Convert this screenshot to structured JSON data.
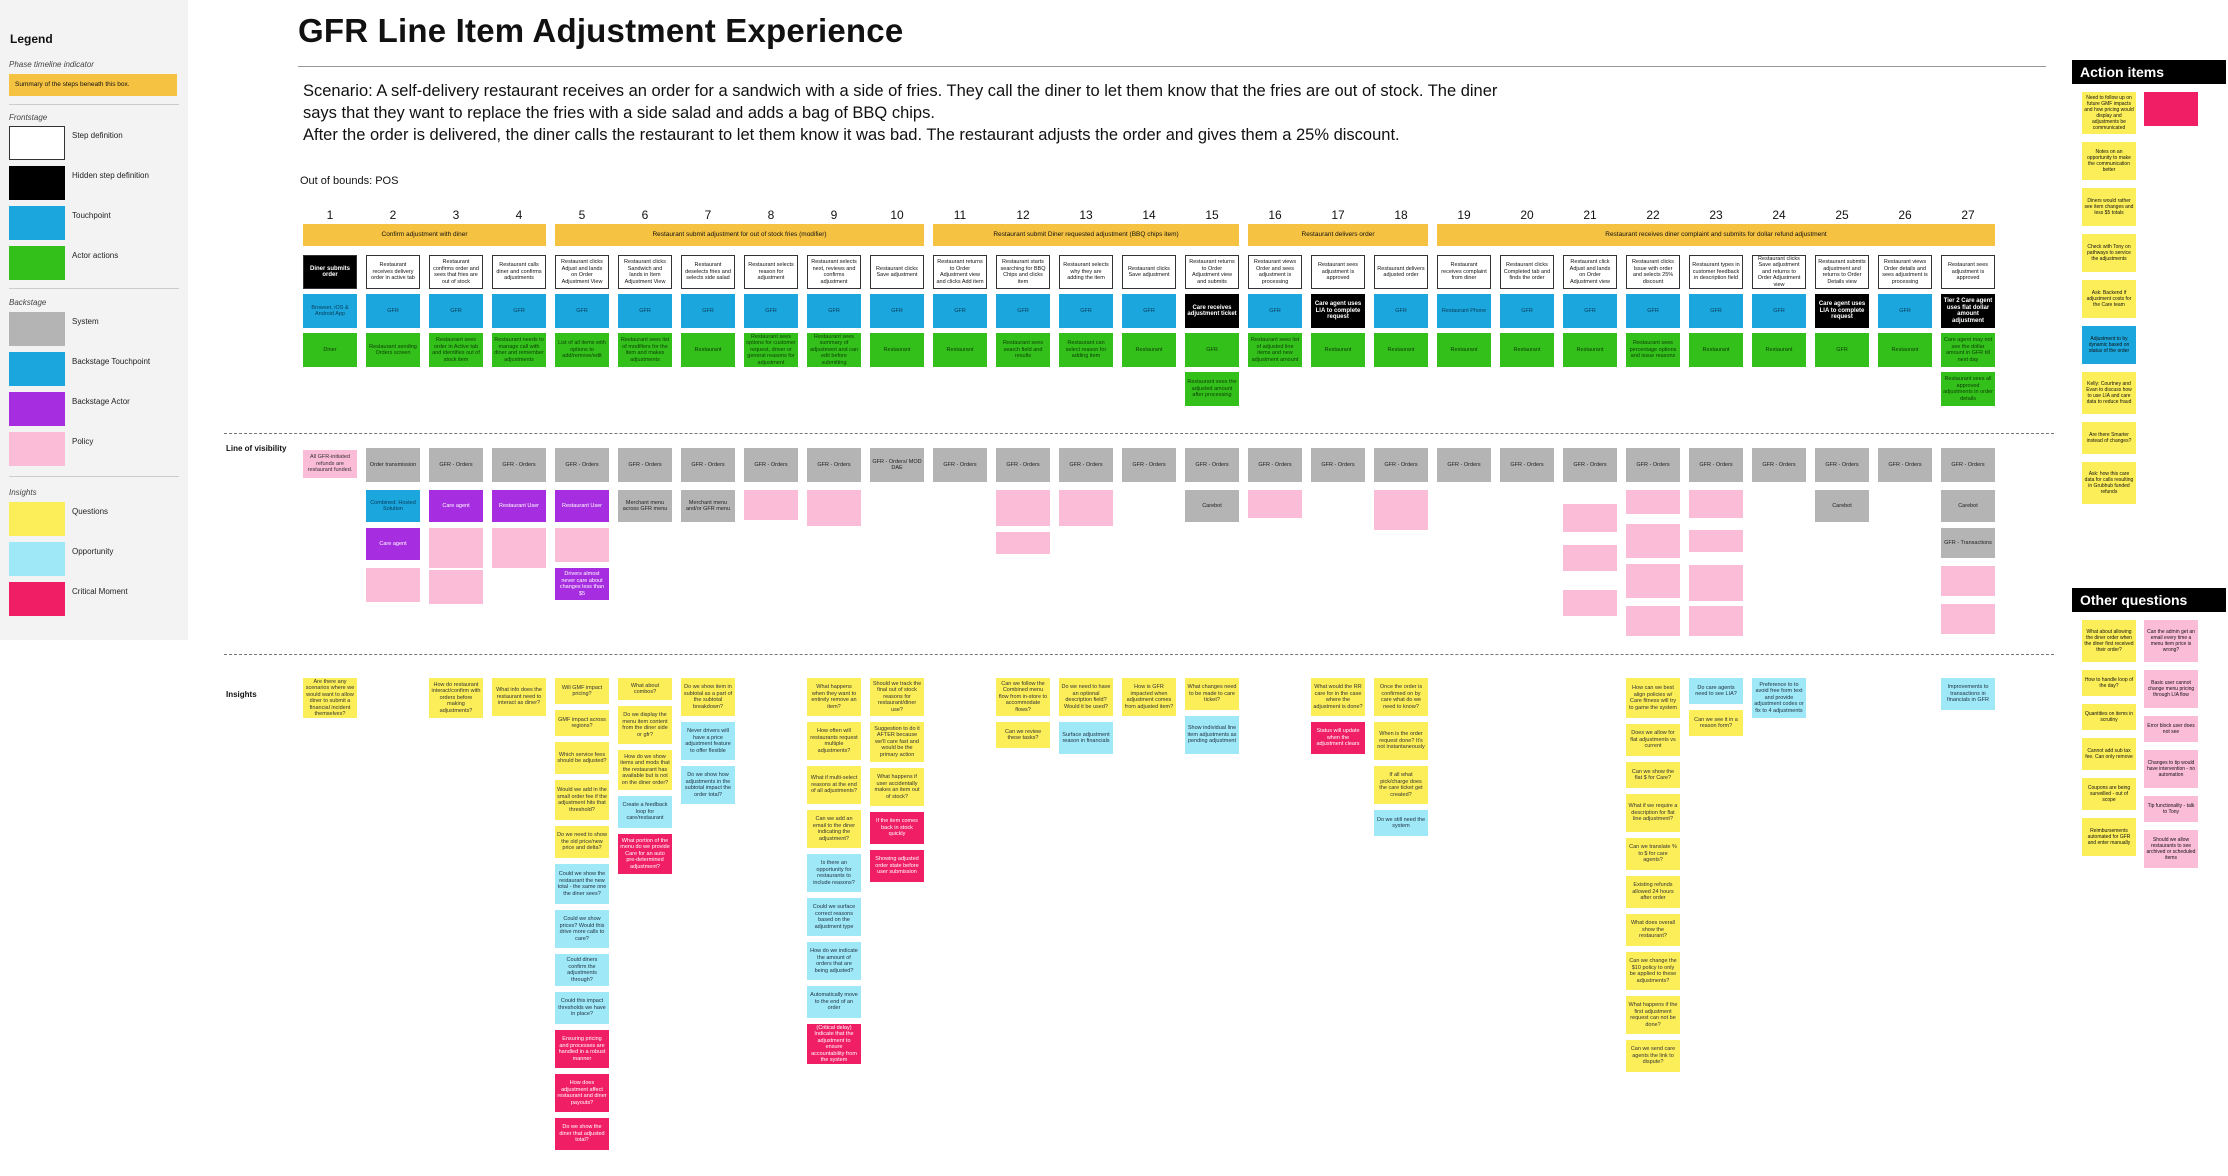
{
  "legend": {
    "title": "Legend",
    "phase_header": "Phase timeline indicator",
    "phase_sample": "Summary of the steps beneath this box.",
    "frontstage": "Frontstage",
    "step": "Step definition",
    "hidden": "Hidden step definition",
    "touchpoint": "Touchpoint",
    "actor": "Actor actions",
    "backstage": "Backstage",
    "system": "System",
    "backstage_touchpoint": "Backstage Touchpoint",
    "backstage_actor": "Backstage Actor",
    "policy": "Policy",
    "insights": "Insights",
    "questions": "Questions",
    "opportunity": "Opportunity",
    "critical": "Critical Moment"
  },
  "colors": {
    "phase": "#f5c242",
    "touchpoint": "#1ba7de",
    "actor": "#34c01b",
    "system": "#b4b4b4",
    "backstage_actor": "#a72de0",
    "policy": "#fbbcd7",
    "question": "#fcee59",
    "opportunity": "#9fe8f7",
    "critical": "#f01e64"
  },
  "header": {
    "title": "GFR Line Item Adjustment Experience",
    "scenario_1": "Scenario: A self-delivery restaurant receives an order for a sandwich with a side of fries. They call the diner to let them know that the fries are out of stock. The diner",
    "scenario_2": "says that they want to replace the fries with a side salad and adds a bag of BBQ chips.",
    "scenario_3": "After the order is delivered, the diner calls the restaurant to let them know it was bad. The restaurant adjusts the order and gives them a 25% discount.",
    "out_of_bounds": "Out of bounds: POS"
  },
  "rows": {
    "line_of_visibility": "Line of visibility",
    "insights": "Insights"
  },
  "columns": [
    "1",
    "2",
    "3",
    "4",
    "5",
    "6",
    "7",
    "8",
    "9",
    "10",
    "11",
    "12",
    "13",
    "14",
    "15",
    "16",
    "17",
    "18",
    "19",
    "20",
    "21",
    "22",
    "23",
    "24",
    "25",
    "26",
    "27"
  ],
  "phases": [
    {
      "label": "Confirm adjustment with diner"
    },
    {
      "label": "Restaurant submit adjustment for out of stock fries (modifier)"
    },
    {
      "label": "Restaurant submit Diner requested adjustment (BBQ chips item)"
    },
    {
      "label": "Restaurant delivers order"
    },
    {
      "label": "Restaurant receives diner complaint and submits for dollar refund adjustment"
    }
  ],
  "steps": [
    "Diner submits order",
    "Restaurant receives delivery order in active tab",
    "Restaurant confirms order and sees that fries are out of stock",
    "Restaurant calls diner and confirms adjustments",
    "Restaurant clicks Adjust and lands on Order Adjustment View",
    "Restaurant clicks Sandwich and lands in Item Adjustment View",
    "Restaurant deselects fries and selects side salad",
    "Restaurant selects reason for adjustment",
    "Restaurant selects next, reviews and confirms adjustment",
    "Restaurant clicks Save adjustment",
    "Restaurant returns to Order Adjustment view and clicks Add item",
    "Restaurant starts searching for BBQ Chips and clicks item",
    "Restaurant selects why they are adding the item",
    "Restaurant clicks Save adjustment",
    "Restaurant returns to Order Adjustment view and submits",
    "Restaurant views Order and sees adjustment is processing",
    "Restaurant sees adjustment is approved",
    "Restaurant delivers adjusted order",
    "Restaurant receives complaint from diner",
    "Restaurant clicks Completed tab and finds the order",
    "Restaurant click Adjust and lands on Order Adjustment view",
    "Restaurant clicks Issue with order and selects 25% discount",
    "Restaurant types in customer feedback in description field",
    "Restaurant clicks Save adjustment and returns to Order Adjustment view",
    "Restaurant submits adjustment and returns to Order Details view",
    "Restaurant views Order details and sees adjustment is processing",
    "Restaurant sees adjustment is approved"
  ],
  "touchpoints": [
    "Browser, iOS & Android App",
    "GFR",
    "GFR",
    "GFR",
    "GFR",
    "GFR",
    "GFR",
    "GFR",
    "GFR",
    "GFR",
    "GFR",
    "GFR",
    "GFR",
    "GFR",
    "Care receives adjustment ticket",
    "GFR",
    "Care agent uses LIA to complete request",
    "GFR",
    "Restaurant Phone",
    "GFR",
    "GFR",
    "GFR",
    "GFR",
    "GFR",
    "Care agent uses LIA to complete request",
    "GFR",
    "Tier 2 Care agent uses flat dollar amount adjustment"
  ],
  "actors": [
    "Diner",
    "Restaurant sending Orders screen",
    "Restaurant sees order in Active tab and identifies out of stock item",
    "Restaurant needs to manage call with diner and remember adjustments",
    "List of all items with options to add/remove/edit",
    "Restaurant sees list of modifiers for the item and makes adjustments",
    "Restaurant",
    "Restaurant sees options for customer request, driver or general reasons for adjustment",
    "Restaurant sees summary of adjustment and can edit before submitting",
    "Restaurant",
    "Restaurant",
    "Restaurant sees search field and results",
    "Restaurant can select reason for adding item",
    "Restaurant",
    "GFR",
    "Restaurant sees list of adjusted line items and new adjustment amount",
    "Restaurant",
    "Restaurant",
    "Restaurant",
    "Restaurant",
    "Restaurant",
    "Restaurant sees percentage options and issue reasons",
    "Restaurant",
    "Restaurant",
    "GFR",
    "Restaurant",
    "Care agent may not see the dollar amount in GFR till next day"
  ],
  "extra_actor": {
    "col15": "Restaurant sees the adjusted amount after processing",
    "col27": "Restaurant sees all approved adjustments in order details"
  },
  "systems": [
    "",
    "Order transmission",
    "GFR - Orders",
    "GFR - Orders",
    "GFR - Orders",
    "GFR - Orders",
    "GFR - Orders",
    "GFR - Orders",
    "GFR - Orders",
    "GFR - Orders/ MOD DAE",
    "GFR - Orders",
    "GFR - Orders",
    "GFR - Orders",
    "GFR - Orders",
    "GFR - Orders",
    "GFR - Orders",
    "GFR - Orders",
    "GFR - Orders",
    "GFR - Orders",
    "GFR - Orders",
    "GFR - Orders",
    "GFR - Orders",
    "GFR - Orders",
    "GFR - Orders",
    "GFR - Orders",
    "GFR - Orders",
    "GFR - Orders"
  ],
  "policy_col1": "All GFR-initiated refunds are restaurant funded.",
  "backstage": {
    "care_agent": "Care agent",
    "restaurant_user": "Restaurant User",
    "carebot": "Carebot",
    "transactions": "GFR - Transactions",
    "combined": "Combined: Hosted Solution",
    "merchant_1": "Merchant menu across GFR menu",
    "merchant_2": "Merchant menu and/or GFR menu",
    "drivers_cannot": "Drivers almost never care about changes less than $5"
  },
  "insights_label": "Insights",
  "action_items": {
    "title": "Action items",
    "notes": [
      "Need to follow up on future GMF impacts and how pricing would display and adjustments be communicated",
      "Notes on an opportunity to make the communication better",
      "Diners would rather see item changes and less $5 totals",
      "Check with Tony on pathways to service the adjustments",
      "Ask: Backend if adjustment costs for the Care team",
      "Adjustment to by dynamic based on status of the order",
      "Kelly: Courtney and Evan to discuss how to use LIA and care data to reduce fraud",
      "Are there Smarter instead of changes?",
      "Ask: how this care data for calls resulting in Grubhub funded refunds"
    ]
  },
  "other_questions": {
    "title": "Other questions",
    "notes": [
      "What about allowing the diner order when the diner first received their order?",
      "Can the admin get an email every time a menu item price is wrong?",
      "How to handle loop of the day?",
      "Basic user cannot change menu pricing through LIA flow",
      "Quantities on items in scrutiny",
      "Error block user does not see",
      "Cannot add sub tax fee. Can only remove",
      "Changes to tip would have intervention - no automation",
      "Coupons are being surveilled - out of scope",
      "Tip functionality - talk to Tony",
      "Reimbursements automated for GFR and enter manually",
      "Should we allow restaurants to see archived or scheduled items"
    ]
  },
  "insights_cols": [
    {
      "col": 1,
      "items": [
        {
          "t": "q",
          "text": "Are there any scenarios where we would want to allow diner to submit a financial incident themselves?"
        }
      ]
    },
    {
      "col": 3,
      "items": [
        {
          "t": "q",
          "text": "How do restaurant interact/confirm with orders before making adjustments?"
        }
      ]
    },
    {
      "col": 4,
      "items": [
        {
          "t": "q",
          "text": "What info does the restaurant need to interact as diner?"
        }
      ]
    },
    {
      "col": 5,
      "items": [
        {
          "t": "q",
          "text": "Will GMF impact pricing?"
        },
        {
          "t": "q",
          "text": "GMF impact across regions?"
        },
        {
          "t": "q",
          "text": "Which service fees should be adjusted?"
        },
        {
          "t": "q",
          "text": "Would we add in the small order fee if the adjustment hits that threshold?"
        },
        {
          "t": "q",
          "text": "Do we need to show the old price/new price and delta?"
        },
        {
          "t": "o",
          "text": "Could we show the restaurant the new total - the same one the diner sees?"
        },
        {
          "t": "o",
          "text": "Could we show prices? Would this drive more calls to care?"
        },
        {
          "t": "o",
          "text": "Could diners confirm the adjustments through?"
        },
        {
          "t": "o",
          "text": "Could this impact thresholds we have in place?"
        },
        {
          "t": "c",
          "text": "Ensuring pricing and processes are handled in a robust manner"
        },
        {
          "t": "c",
          "text": "How does adjustment affect restaurant and diner payouts?"
        },
        {
          "t": "c",
          "text": "Do we show the diner that adjusted total?"
        }
      ]
    },
    {
      "col": 6,
      "items": [
        {
          "t": "q",
          "text": "What about combos?"
        },
        {
          "t": "q",
          "text": "Do we display the menu item content from the diner side or gfr?"
        },
        {
          "t": "q",
          "text": "How do we show items and mods that the restaurant has available but is not on the diner order?"
        },
        {
          "t": "o",
          "text": "Create a feedback loop for care/restaurant"
        },
        {
          "t": "c",
          "text": "What portion of the menu do we provide Care for an auto pre-determined adjustment?"
        }
      ]
    },
    {
      "col": 7,
      "items": [
        {
          "t": "q",
          "text": "Do we show item in subtotal as a part of the subtotal breakdown?"
        },
        {
          "t": "o",
          "text": "Never drivers will have a price adjustment feature to offer flexible"
        },
        {
          "t": "o",
          "text": "Do we show how adjustments in the subtotal impact the order total?"
        }
      ]
    },
    {
      "col": 9,
      "items": [
        {
          "t": "q",
          "text": "What happens when they want to entirely remove an item?"
        },
        {
          "t": "q",
          "text": "How often will restaurants request multiple adjustments?"
        },
        {
          "t": "q",
          "text": "What if multi-select reasons at the end of all adjustments?"
        },
        {
          "t": "q",
          "text": "Can we add an email to the diner indicating the adjustment?"
        },
        {
          "t": "o",
          "text": "Is there an opportunity for restaurants to include reasons?"
        },
        {
          "t": "o",
          "text": "Could we surface correct reasons based on the adjustment type"
        },
        {
          "t": "o",
          "text": "How do we indicate the amount of orders that are being adjusted?"
        },
        {
          "t": "o",
          "text": "Automatically move to the end of an order"
        },
        {
          "t": "c",
          "text": "(Critical delay) Indicate that the adjustment to ensure accountability from the system"
        }
      ]
    },
    {
      "col": 10,
      "items": [
        {
          "t": "q",
          "text": "Should we track the final out of stock reasons for restaurant/diner use?"
        },
        {
          "t": "q",
          "text": "Suggestion to do it AFTER because we'll care fast and would be the primary action"
        },
        {
          "t": "q",
          "text": "What happens if user accidentally makes an item out of stock?"
        },
        {
          "t": "c",
          "text": "If the item comes back in stock quickly"
        },
        {
          "t": "c",
          "text": "Showing adjusted order state before user submission"
        }
      ]
    },
    {
      "col": 12,
      "items": [
        {
          "t": "q",
          "text": "Can we follow the Combined menu flow from in-store to accommodate flows?"
        },
        {
          "t": "q",
          "text": "Can we review these tasks?"
        }
      ]
    },
    {
      "col": 13,
      "items": [
        {
          "t": "q",
          "text": "Do we need to have an optional description field? Would it be used?"
        },
        {
          "t": "o",
          "text": "Surface adjustment reason in financials"
        }
      ]
    },
    {
      "col": 14,
      "items": [
        {
          "t": "q",
          "text": "How is GFR impacted when adjustment comes from adjusted item?"
        }
      ]
    },
    {
      "col": 15,
      "items": [
        {
          "t": "q",
          "text": "What changes need to be made to care ticket?"
        },
        {
          "t": "o",
          "text": "Show individual line item adjustments as pending adjustment"
        }
      ]
    },
    {
      "col": 17,
      "items": [
        {
          "t": "q",
          "text": "What would the RR care for in the case where the adjustment is done?"
        },
        {
          "t": "c",
          "text": "Status will update when the adjustment clears"
        }
      ]
    },
    {
      "col": 18,
      "items": [
        {
          "t": "q",
          "text": "Once the order is confirmed on by care what do we need to know?"
        },
        {
          "t": "q",
          "text": "When is the order request done? It's not instantaneously"
        },
        {
          "t": "q",
          "text": "If all what pick/charge does the care ticket get created?"
        },
        {
          "t": "o",
          "text": "Do we still need the system"
        }
      ]
    },
    {
      "col": 22,
      "items": [
        {
          "t": "q",
          "text": "How can we best align policies w/ Care fitness will try to game the system"
        },
        {
          "t": "q",
          "text": "Does we allow for flat adjustments vs current"
        },
        {
          "t": "q",
          "text": "Can we show the flat $ for Care?"
        },
        {
          "t": "q",
          "text": "What if we require a description for flat line adjustment?"
        },
        {
          "t": "q",
          "text": "Can we translate % to $ for care agents?"
        },
        {
          "t": "q",
          "text": "Existing refunds allowed 24 hours after order"
        },
        {
          "t": "q",
          "text": "What does overall show the restaurant?"
        },
        {
          "t": "q",
          "text": "Can we change the $10 policy to only be applied to these adjustments?"
        },
        {
          "t": "q",
          "text": "What happens if the first adjustment request can not be done?"
        },
        {
          "t": "q",
          "text": "Can we send care agents the link to dispute?"
        }
      ]
    },
    {
      "col": 23,
      "items": [
        {
          "t": "o",
          "text": "Do care agents need to see LIA?"
        },
        {
          "t": "q",
          "text": "Can we see it in a reason form?"
        }
      ]
    },
    {
      "col": 24,
      "items": [
        {
          "t": "o",
          "text": "Preference to to avoid free form text and provide adjustment codes or fix to 4 adjustments"
        }
      ]
    },
    {
      "col": 27,
      "items": [
        {
          "t": "o",
          "text": "Improvements to transactions in financials in GFR"
        }
      ]
    }
  ]
}
